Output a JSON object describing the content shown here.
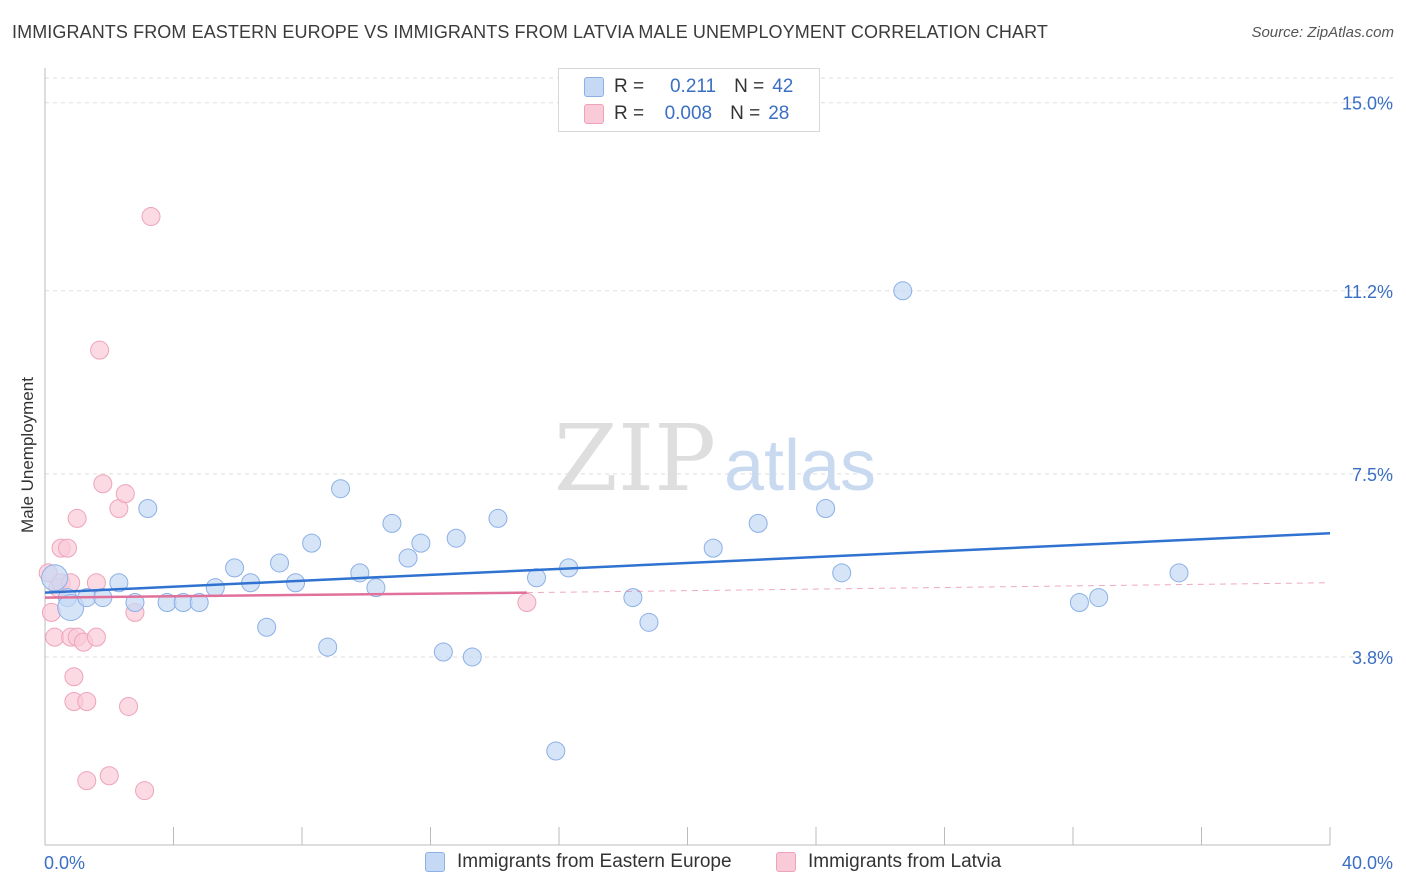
{
  "title": "IMMIGRANTS FROM EASTERN EUROPE VS IMMIGRANTS FROM LATVIA MALE UNEMPLOYMENT CORRELATION CHART",
  "source": "Source: ZipAtlas.com",
  "watermark": {
    "zip": "ZIP",
    "atlas": "atlas"
  },
  "colors": {
    "blue_fill": "#c5d9f5",
    "blue_stroke": "#8cb0e6",
    "blue_line": "#2f72d0",
    "pink_fill": "#f9cbd9",
    "pink_stroke": "#eea3bb",
    "pink_line": "#e0719a",
    "axis_text": "#3a6fc4",
    "grid": "#dddddd"
  },
  "stats": {
    "r_label": "R =",
    "n_label": "N =",
    "series": [
      {
        "r": "0.211",
        "n": "42"
      },
      {
        "r": "0.008",
        "n": "28"
      }
    ]
  },
  "chart_data": {
    "type": "scatter",
    "title": "IMMIGRANTS FROM EASTERN EUROPE VS IMMIGRANTS FROM LATVIA MALE UNEMPLOYMENT CORRELATION CHART",
    "xlabel": "",
    "ylabel": "Male Unemployment",
    "xlim": [
      0,
      40
    ],
    "ylim": [
      0,
      15.5
    ],
    "x_tick_labels": [
      "0.0%",
      "40.0%"
    ],
    "y_ticks": [
      3.8,
      7.5,
      11.2,
      15.0
    ],
    "y_tick_labels": [
      "3.8%",
      "7.5%",
      "11.2%",
      "15.0%"
    ],
    "legend_position": "bottom-center",
    "series": [
      {
        "name": "Immigrants from Eastern Europe",
        "color": "#8cb0e6",
        "trend": {
          "x0": 0,
          "y0": 5.1,
          "x1": 40,
          "y1": 6.3
        },
        "points": [
          [
            0.3,
            5.4
          ],
          [
            0.7,
            5.0
          ],
          [
            0.8,
            4.8
          ],
          [
            1.3,
            5.0
          ],
          [
            1.8,
            5.0
          ],
          [
            2.3,
            5.3
          ],
          [
            2.8,
            4.9
          ],
          [
            3.2,
            6.8
          ],
          [
            3.8,
            4.9
          ],
          [
            4.3,
            4.9
          ],
          [
            4.8,
            4.9
          ],
          [
            5.3,
            5.2
          ],
          [
            5.9,
            5.6
          ],
          [
            6.4,
            5.3
          ],
          [
            6.9,
            4.4
          ],
          [
            7.3,
            5.7
          ],
          [
            7.8,
            5.3
          ],
          [
            8.3,
            6.1
          ],
          [
            8.8,
            4.0
          ],
          [
            9.2,
            7.2
          ],
          [
            9.8,
            5.5
          ],
          [
            10.3,
            5.2
          ],
          [
            10.8,
            6.5
          ],
          [
            11.3,
            5.8
          ],
          [
            11.7,
            6.1
          ],
          [
            12.4,
            3.9
          ],
          [
            12.8,
            6.2
          ],
          [
            13.3,
            3.8
          ],
          [
            14.1,
            6.6
          ],
          [
            15.3,
            5.4
          ],
          [
            15.9,
            1.9
          ],
          [
            16.3,
            5.6
          ],
          [
            18.3,
            5.0
          ],
          [
            18.8,
            4.5
          ],
          [
            20.8,
            6.0
          ],
          [
            22.2,
            6.5
          ],
          [
            24.3,
            6.8
          ],
          [
            24.8,
            5.5
          ],
          [
            26.7,
            11.2
          ],
          [
            32.2,
            4.9
          ],
          [
            32.8,
            5.0
          ],
          [
            35.3,
            5.5
          ]
        ]
      },
      {
        "name": "Immigrants from Latvia",
        "color": "#eea3bb",
        "trend": {
          "x0": 0,
          "y0": 5.0,
          "x1": 15,
          "y1": 5.1,
          "dashed_to_x": 40,
          "dashed_to_y": 5.3
        },
        "points": [
          [
            0.1,
            5.5
          ],
          [
            0.2,
            4.7
          ],
          [
            0.3,
            4.2
          ],
          [
            0.4,
            5.2
          ],
          [
            0.5,
            6.0
          ],
          [
            0.5,
            5.3
          ],
          [
            0.7,
            6.0
          ],
          [
            0.8,
            4.2
          ],
          [
            0.8,
            5.3
          ],
          [
            0.9,
            3.4
          ],
          [
            0.9,
            2.9
          ],
          [
            1.0,
            4.2
          ],
          [
            1.0,
            6.6
          ],
          [
            1.2,
            4.1
          ],
          [
            1.3,
            2.9
          ],
          [
            1.3,
            1.3
          ],
          [
            1.6,
            4.2
          ],
          [
            1.6,
            5.3
          ],
          [
            1.7,
            10.0
          ],
          [
            1.8,
            7.3
          ],
          [
            2.0,
            1.4
          ],
          [
            2.3,
            6.8
          ],
          [
            2.5,
            7.1
          ],
          [
            2.6,
            2.8
          ],
          [
            2.8,
            4.7
          ],
          [
            3.1,
            1.1
          ],
          [
            3.3,
            12.7
          ],
          [
            15.0,
            4.9
          ]
        ]
      }
    ]
  }
}
